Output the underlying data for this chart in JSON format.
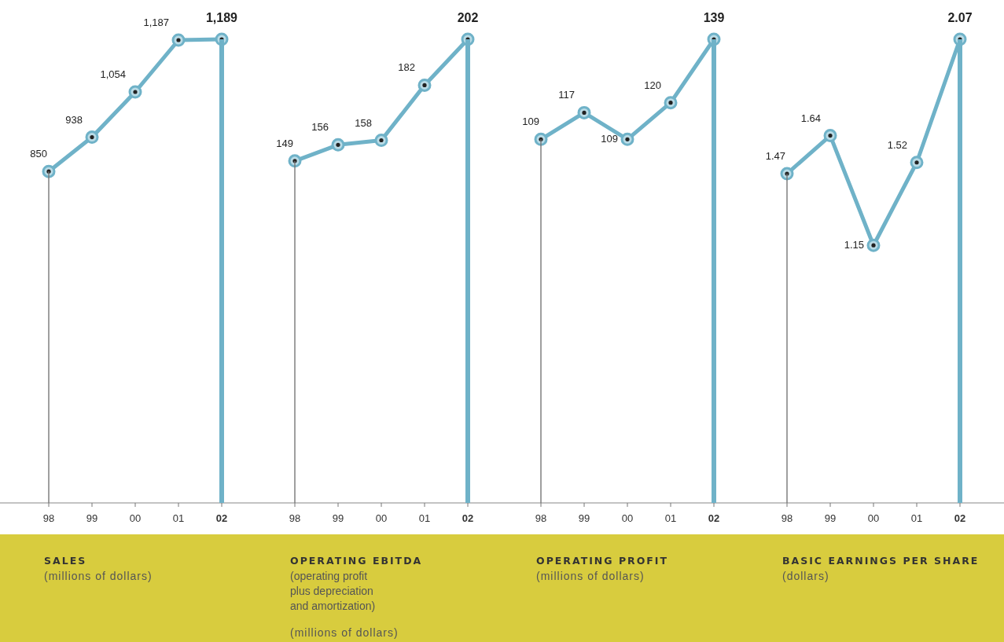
{
  "chart_data": [
    {
      "type": "line",
      "title": "SALES",
      "subtitle": "(millions of dollars)",
      "categories": [
        "98",
        "99",
        "00",
        "01",
        "02"
      ],
      "tick_labels": "x",
      "series": [
        {
          "type": "bar",
          "color": "#777777",
          "values": [
            850,
            null,
            null,
            null,
            null
          ]
        },
        {
          "type": "bar",
          "color": "#6fb2c8",
          "values": [
            null,
            null,
            null,
            null,
            1189
          ]
        },
        {
          "color": "#6fb2c8",
          "marker": "circle",
          "values": [
            850,
            938,
            1054,
            1187,
            1189
          ],
          "value_labels": [
            "850",
            "938",
            "1,054",
            "1,187",
            "1,189"
          ]
        }
      ]
    },
    {
      "type": "line",
      "title": "OPERATING EBITDA",
      "subtitle": "(operating profit plus depreciation and amortization)",
      "annotations": [
        "(millions of dollars)"
      ],
      "categories": [
        "98",
        "99",
        "00",
        "01",
        "02"
      ],
      "tick_labels": "x",
      "series": [
        {
          "type": "bar",
          "color": "#777777",
          "values": [
            149,
            null,
            null,
            null,
            null
          ]
        },
        {
          "type": "bar",
          "color": "#6fb2c8",
          "values": [
            null,
            null,
            null,
            null,
            202
          ]
        },
        {
          "color": "#6fb2c8",
          "marker": "circle",
          "values": [
            149,
            156,
            158,
            182,
            202
          ],
          "value_labels": [
            "149",
            "156",
            "158",
            "182",
            "202"
          ]
        }
      ]
    },
    {
      "type": "line",
      "title": "OPERATING PROFIT",
      "subtitle": "(millions of dollars)",
      "categories": [
        "98",
        "99",
        "00",
        "01",
        "02"
      ],
      "tick_labels": "x",
      "series": [
        {
          "type": "bar",
          "color": "#777777",
          "values": [
            109,
            null,
            null,
            null,
            null
          ]
        },
        {
          "type": "bar",
          "color": "#6fb2c8",
          "values": [
            null,
            null,
            null,
            null,
            139
          ]
        },
        {
          "color": "#6fb2c8",
          "marker": "circle",
          "values": [
            109,
            117,
            109,
            120,
            139
          ],
          "value_labels": [
            "109",
            "117",
            "109",
            "120",
            "139"
          ]
        }
      ]
    },
    {
      "type": "line",
      "title": "BASIC EARNINGS PER SHARE",
      "subtitle": "(dollars)",
      "categories": [
        "98",
        "99",
        "00",
        "01",
        "02"
      ],
      "tick_labels": "x",
      "series": [
        {
          "type": "bar",
          "color": "#777777",
          "values": [
            1.47,
            null,
            null,
            null,
            null
          ]
        },
        {
          "type": "bar",
          "color": "#6fb2c8",
          "values": [
            null,
            null,
            null,
            null,
            2.07
          ]
        },
        {
          "color": "#6fb2c8",
          "marker": "circle",
          "values": [
            1.47,
            1.64,
            1.15,
            1.52,
            2.07
          ],
          "value_labels": [
            "1.47",
            "1.64",
            "1.15",
            "1.52",
            "2.07"
          ]
        }
      ]
    }
  ]
}
